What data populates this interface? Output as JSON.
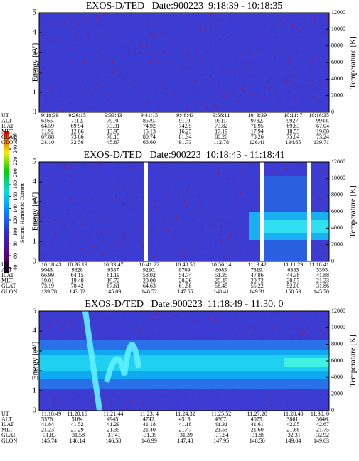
{
  "chart_data": [
    {
      "type": "spectrogram",
      "title": "EXOS-D/TED   Date:900223  9:18:39 - 10:18:35",
      "ylabel": "Energy [eV]",
      "y2label": "Temperature [K]",
      "ylim": [
        0,
        5
      ],
      "yticks": [
        0,
        1,
        2,
        3,
        4,
        5
      ],
      "y2lim": [
        0,
        12000
      ],
      "y2ticks": [
        0,
        2000,
        4000,
        6000,
        8000,
        10000,
        12000
      ],
      "table": [
        {
          "label": "UT",
          "values": [
            "9:18:39",
            "9:26:15",
            "9:33:43",
            "9:41:15",
            "9:48:43",
            "9:56:11",
            "10: 3:39",
            "10:11: 7",
            "10:18:35"
          ]
        },
        {
          "label": "ALT",
          "values": [
            "6165.",
            "7112.",
            "7910.",
            "8579.",
            "9110.",
            "9511.",
            "9782.",
            "9927.",
            "9944."
          ]
        },
        {
          "label": "ILAT",
          "values": [
            "64.59",
            "69.94",
            "73.31",
            "74.92",
            "74.95",
            "73.82",
            "71.95",
            "69.63",
            "67.04"
          ]
        },
        {
          "label": "MLT",
          "values": [
            "11.92",
            "12.86",
            "13.95",
            "15.13",
            "16.25",
            "17.19",
            "17.94",
            "18.53",
            "19.00"
          ]
        },
        {
          "label": "GLAT",
          "values": [
            "67.88",
            "73.86",
            "78.15",
            "80.74",
            "81.34",
            "80.26",
            "78.26",
            "75.84",
            "73.24"
          ]
        },
        {
          "label": "GLON",
          "values": [
            "24.10",
            "32.56",
            "45.87",
            "66.60",
            "91.73",
            "112.78",
            "126.41",
            "134.65",
            "139.71"
          ]
        }
      ]
    },
    {
      "type": "spectrogram",
      "title": "EXOS-D/TED   Date:900223  10:18:43 - 11:18:41",
      "ylabel": "Energy [eV]",
      "y2label": "Temperature [K]",
      "ylim": [
        0,
        5
      ],
      "yticks": [
        0,
        1,
        2,
        3,
        4,
        5
      ],
      "y2lim": [
        0,
        12000
      ],
      "y2ticks": [
        0,
        2000,
        4000,
        6000,
        8000,
        10000,
        12000
      ],
      "colorbar": {
        "label": "Second Harmonic Current",
        "ticks": [
          40,
          60,
          80,
          100,
          120,
          140,
          160,
          180,
          200,
          220,
          240,
          260
        ]
      },
      "table": [
        {
          "label": "UT",
          "values": [
            "10:18:43",
            "10:26:19",
            "10:33:47",
            "10:41:22",
            "10:48:50",
            "10:56:14",
            "11: 3:42",
            "11:11:29",
            "11:18:41"
          ]
        },
        {
          "label": "ALT",
          "values": [
            "9943.",
            "9828",
            "9587",
            "9210.",
            "8709.",
            "8083",
            "7319.",
            "6383",
            "5395."
          ]
        },
        {
          "label": "ILAT",
          "values": [
            "66.99",
            "64.15",
            "61.19",
            "58.02",
            "54.74",
            "51.35",
            "47.86",
            "44.38",
            "41.88"
          ]
        },
        {
          "label": "MLT",
          "values": [
            "19.01",
            "19.40",
            "19.72",
            "20.00",
            "20.26",
            "20.49",
            "20.72",
            "20.97",
            "21.23"
          ]
        },
        {
          "label": "GLAT",
          "values": [
            "73.19",
            "70.42",
            "67.61",
            "64.63",
            "61.58",
            "58.45",
            "55.22",
            "52.00",
            "-31.86"
          ]
        },
        {
          "label": "GLON",
          "values": [
            "139.78",
            "143.02",
            "145.09",
            "146.52",
            "147.55",
            "148.41",
            "149.31",
            "150.53",
            "145.70"
          ]
        }
      ]
    },
    {
      "type": "spectrogram",
      "title": "EXOS-D/TED   Date:900223  11:18:49 - 11:30: 0",
      "ylabel": "Energy [eV]",
      "y2label": "Temperature [K]",
      "ylim": [
        0,
        5
      ],
      "yticks": [
        0,
        1,
        2,
        3,
        4,
        5
      ],
      "y2lim": [
        0,
        12000
      ],
      "y2ticks": [
        0,
        2000,
        4000,
        6000,
        8000,
        10000,
        12000
      ],
      "table": [
        {
          "label": "UT",
          "values": [
            "11:18:49",
            "11:20:16",
            "11:21:44",
            "11:23: 4",
            "11:24:32",
            "11:25:52",
            "11:27:20",
            "11:28:40",
            "11:30: 0"
          ]
        },
        {
          "label": "ALT",
          "values": [
            "5376.",
            "5164",
            "4945.",
            "4742.",
            "4516.",
            "4307.",
            "4075.",
            "3861.",
            "3646."
          ]
        },
        {
          "label": "ILAT",
          "values": [
            "41.84",
            "41.52",
            "41.29",
            "41.18",
            "41.18",
            "41.31",
            "41.61",
            "42.05",
            "42.67"
          ]
        },
        {
          "label": "MLT",
          "values": [
            "21.23",
            "21.29",
            "21.35",
            "21.40",
            "21.47",
            "21.53",
            "21.60",
            "21.68",
            "21.75"
          ]
        },
        {
          "label": "GLAT",
          "values": [
            "-31.83",
            "-31.58",
            "-31.41",
            "-31.35",
            "-31.39",
            "-31.54",
            "-31.86",
            "-32.31",
            "-32.92"
          ]
        },
        {
          "label": "GLON",
          "values": [
            "145.74",
            "146.14",
            "146.58",
            "146.99",
            "147.48",
            "147.95",
            "148.50",
            "149.04",
            "149.63"
          ]
        }
      ]
    }
  ]
}
